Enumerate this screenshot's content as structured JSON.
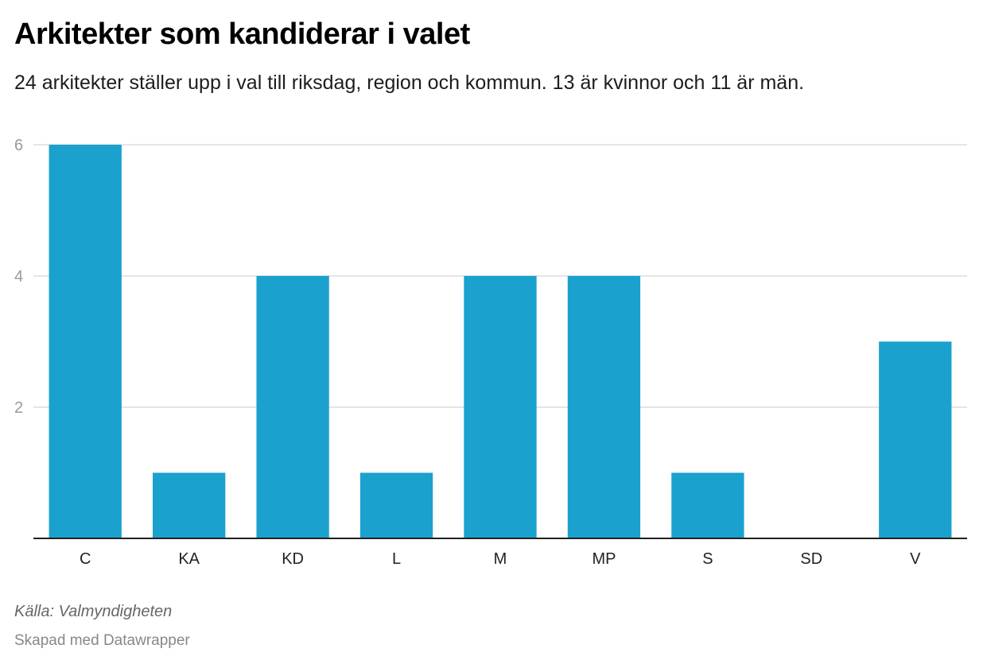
{
  "header": {
    "title": "Arkitekter som kandiderar i valet",
    "subtitle": "24 arkitekter ställer upp i val till riksdag, region och kommun. 13 är kvinnor och 11 är män."
  },
  "footer": {
    "source": "Källa: Valmyndigheten",
    "credit": "Skapad med Datawrapper"
  },
  "colors": {
    "bar": "#1aa1cd",
    "grid": "#e5e5e5",
    "axis": "#222222"
  },
  "chart_data": {
    "type": "bar",
    "title": "Arkitekter som kandiderar i valet",
    "xlabel": "",
    "ylabel": "",
    "categories": [
      "C",
      "KA",
      "KD",
      "L",
      "M",
      "MP",
      "S",
      "SD",
      "V"
    ],
    "values": [
      6,
      1,
      4,
      1,
      4,
      4,
      1,
      0,
      3
    ],
    "ylim": [
      0,
      6
    ],
    "yticks": [
      2,
      4,
      6
    ],
    "grid": true,
    "legend": "none"
  }
}
